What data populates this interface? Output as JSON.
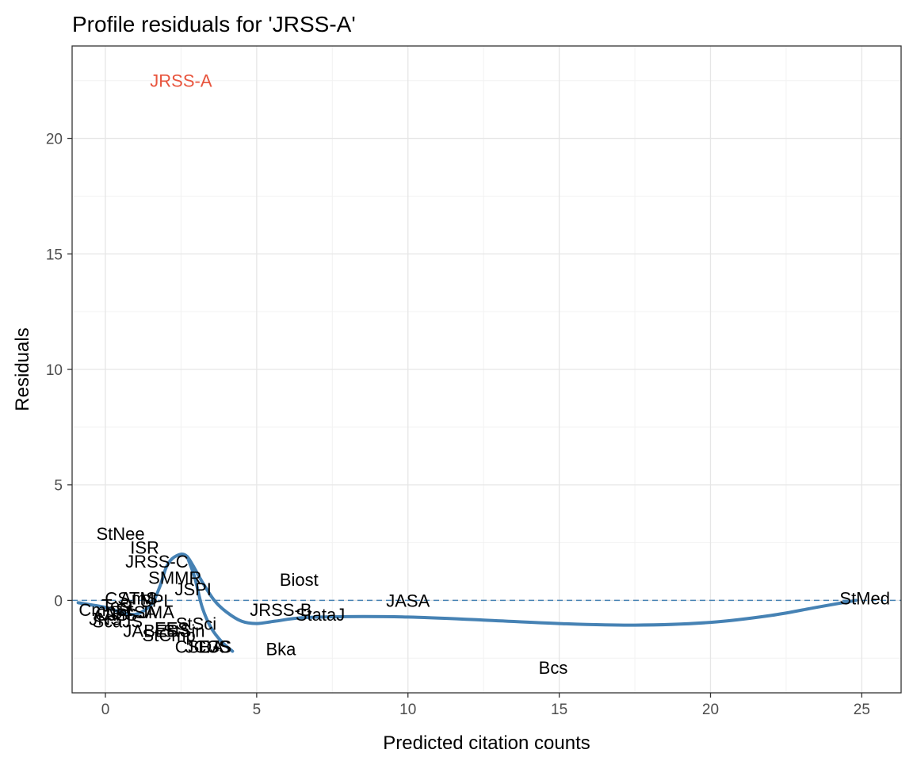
{
  "chart_data": {
    "type": "scatter",
    "title": "Profile residuals for 'JRSS-A'",
    "xlabel": "Predicted citation counts",
    "ylabel": "Residuals",
    "xlim": [
      -1.1,
      26.3
    ],
    "ylim": [
      -4.0,
      24.0
    ],
    "xticks": [
      0,
      5,
      10,
      15,
      20,
      25
    ],
    "yticks": [
      0,
      5,
      10,
      15,
      20
    ],
    "grid": true,
    "reference_line": {
      "y": 0,
      "style": "dashed",
      "color": "#4682b4"
    },
    "highlight_color": "#e8553e",
    "point_color": "#000000",
    "smooth_color": "#4682b4",
    "points": [
      {
        "label": "JRSS-A",
        "x": 2.5,
        "y": 22.5,
        "highlight": true
      },
      {
        "label": "StNee",
        "x": 0.5,
        "y": 2.9
      },
      {
        "label": "ISR",
        "x": 1.3,
        "y": 2.3
      },
      {
        "label": "JRSS-C",
        "x": 1.7,
        "y": 1.7
      },
      {
        "label": "SMMR",
        "x": 2.3,
        "y": 1.0
      },
      {
        "label": "JSPI",
        "x": 2.9,
        "y": 0.5
      },
      {
        "label": "Biost",
        "x": 6.4,
        "y": 0.9
      },
      {
        "label": "JRSS-B",
        "x": 5.8,
        "y": -0.4
      },
      {
        "label": "StataJ",
        "x": 7.1,
        "y": -0.6
      },
      {
        "label": "JASA",
        "x": 10.0,
        "y": 0.0
      },
      {
        "label": "StMed",
        "x": 25.1,
        "y": 0.1
      },
      {
        "label": "Bka",
        "x": 5.8,
        "y": -2.1
      },
      {
        "label": "Bcs",
        "x": 14.8,
        "y": -2.9
      },
      {
        "label": "CSTM",
        "x": 0.8,
        "y": 0.1
      },
      {
        "label": "Test",
        "x": 0.4,
        "y": -0.2
      },
      {
        "label": "AmS",
        "x": 1.1,
        "y": 0.1
      },
      {
        "label": "SPL",
        "x": 1.7,
        "y": 0.0
      },
      {
        "label": "CmpSt",
        "x": 0.0,
        "y": -0.4
      },
      {
        "label": "CJS",
        "x": 0.2,
        "y": -0.6
      },
      {
        "label": "AnS",
        "x": 0.5,
        "y": -0.6
      },
      {
        "label": "JNS",
        "x": 0.0,
        "y": -0.8
      },
      {
        "label": "ScaJS",
        "x": 0.4,
        "y": -0.9
      },
      {
        "label": "JTSA",
        "x": 1.0,
        "y": -0.5
      },
      {
        "label": "JMA",
        "x": 1.7,
        "y": -0.5
      },
      {
        "label": "JABES",
        "x": 1.5,
        "y": -1.3
      },
      {
        "label": "EES",
        "x": 2.2,
        "y": -1.2
      },
      {
        "label": "StCmp",
        "x": 2.1,
        "y": -1.5
      },
      {
        "label": "StSin",
        "x": 2.6,
        "y": -1.3
      },
      {
        "label": "StSci",
        "x": 3.0,
        "y": -1.0
      },
      {
        "label": "CSDA",
        "x": 3.1,
        "y": -2.0
      },
      {
        "label": "JCGS",
        "x": 3.4,
        "y": -2.0
      },
      {
        "label": "EJS",
        "x": 3.6,
        "y": -2.0
      }
    ],
    "smooth": [
      [
        -0.9,
        -0.1
      ],
      [
        0.0,
        -0.3
      ],
      [
        0.5,
        -0.5
      ],
      [
        1.0,
        -0.6
      ],
      [
        1.5,
        -0.2
      ],
      [
        1.8,
        0.6
      ],
      [
        2.0,
        1.4
      ],
      [
        2.2,
        1.8
      ],
      [
        2.5,
        2.0
      ],
      [
        2.7,
        1.9
      ],
      [
        2.9,
        1.5
      ],
      [
        3.2,
        0.8
      ],
      [
        3.6,
        0.0
      ],
      [
        4.0,
        -0.5
      ],
      [
        4.5,
        -0.9
      ],
      [
        5.0,
        -1.0
      ],
      [
        5.6,
        -0.9
      ],
      [
        6.5,
        -0.75
      ],
      [
        8.0,
        -0.7
      ],
      [
        10.0,
        -0.72
      ],
      [
        12.5,
        -0.85
      ],
      [
        15.0,
        -1.0
      ],
      [
        17.5,
        -1.07
      ],
      [
        20.0,
        -0.95
      ],
      [
        22.0,
        -0.65
      ],
      [
        23.5,
        -0.3
      ],
      [
        24.8,
        0.0
      ]
    ],
    "smooth_branch": [
      [
        2.7,
        1.9
      ],
      [
        2.95,
        1.0
      ],
      [
        3.2,
        -0.3
      ],
      [
        3.5,
        -1.2
      ],
      [
        3.85,
        -1.8
      ],
      [
        4.2,
        -2.2
      ]
    ]
  }
}
